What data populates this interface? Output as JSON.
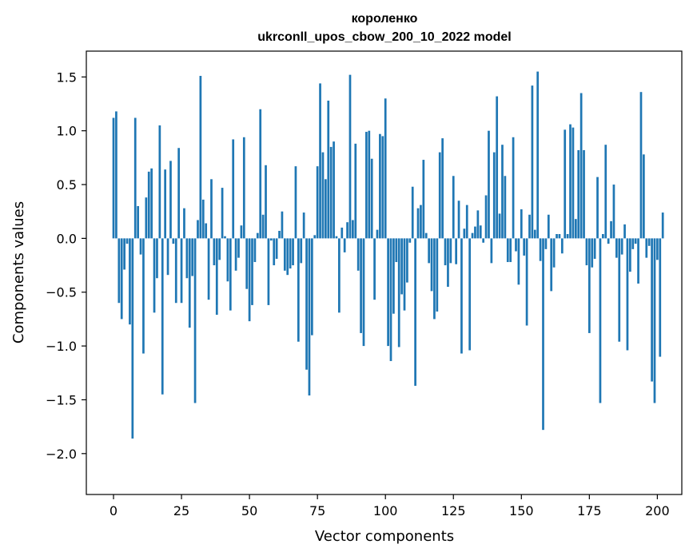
{
  "chart_data": {
    "type": "bar",
    "title": "короленко",
    "subtitle": "ukrconll_upos_cbow_200_10_2022 model",
    "xlabel": "Vector components",
    "ylabel": "Components values",
    "xlim": [
      -10,
      209
    ],
    "ylim": [
      -2.38,
      1.74
    ],
    "xticks": [
      0,
      25,
      50,
      75,
      100,
      125,
      150,
      175,
      200
    ],
    "yticks": [
      -2.0,
      -1.5,
      -1.0,
      -0.5,
      0.0,
      0.5,
      1.0,
      1.5
    ],
    "ytick_labels": [
      "−2.0",
      "−1.5",
      "−1.0",
      "−0.5",
      "0.0",
      "0.5",
      "1.0",
      "1.5"
    ],
    "bar_color": "#1f77b4",
    "grid": false,
    "series": [
      {
        "values": [
          1.12,
          1.18,
          -0.6,
          -0.75,
          -0.29,
          -0.05,
          -0.8,
          -1.86,
          1.12,
          0.3,
          -0.15,
          -1.07,
          0.38,
          0.62,
          0.65,
          -0.69,
          -0.37,
          1.05,
          -1.45,
          0.64,
          -0.34,
          0.72,
          -0.05,
          -0.6,
          0.84,
          -0.6,
          0.28,
          -0.37,
          -0.83,
          -0.35,
          -1.53,
          0.17,
          1.51,
          0.36,
          0.14,
          -0.57,
          0.55,
          -0.25,
          -0.71,
          -0.2,
          0.47,
          0.02,
          -0.4,
          -0.67,
          0.92,
          -0.3,
          -0.18,
          0.12,
          0.94,
          -0.47,
          -0.77,
          -0.62,
          -0.22,
          0.05,
          1.2,
          0.22,
          0.68,
          -0.62,
          -0.02,
          -0.25,
          -0.19,
          0.07,
          0.25,
          -0.3,
          -0.34,
          -0.28,
          -0.25,
          0.67,
          -0.96,
          -0.23,
          0.24,
          -1.22,
          -1.46,
          -0.9,
          0.03,
          0.67,
          1.44,
          0.8,
          0.55,
          1.28,
          0.85,
          0.9,
          0.02,
          -0.69,
          0.1,
          -0.13,
          0.15,
          1.52,
          0.17,
          0.88,
          -0.3,
          -0.88,
          -1.0,
          0.99,
          1.0,
          0.74,
          -0.57,
          0.08,
          0.97,
          0.95,
          1.3,
          -1.0,
          -1.14,
          -0.7,
          -0.22,
          -1.01,
          -0.52,
          -0.67,
          -0.41,
          -0.04,
          0.48,
          -1.37,
          0.28,
          0.31,
          0.73,
          0.05,
          -0.23,
          -0.49,
          -0.75,
          -0.68,
          0.8,
          0.93,
          -0.25,
          -0.45,
          -0.23,
          0.58,
          -0.24,
          0.35,
          -1.07,
          0.09,
          0.31,
          -1.04,
          0.05,
          0.11,
          0.26,
          0.12,
          -0.04,
          0.4,
          1.0,
          -0.23,
          0.8,
          1.32,
          0.23,
          0.87,
          0.58,
          -0.22,
          -0.22,
          0.94,
          -0.12,
          -0.43,
          0.27,
          -0.16,
          -0.81,
          0.22,
          1.42,
          0.08,
          1.55,
          -0.21,
          -1.78,
          -0.1,
          0.22,
          -0.49,
          -0.27,
          0.04,
          0.04,
          -0.14,
          1.01,
          0.04,
          1.06,
          1.03,
          0.18,
          0.82,
          1.35,
          0.82,
          -0.25,
          -0.88,
          -0.27,
          -0.19,
          0.57,
          -1.53,
          0.04,
          0.87,
          -0.05,
          0.16,
          0.5,
          -0.18,
          -0.96,
          -0.15,
          0.13,
          -1.04,
          -0.31,
          -0.1,
          -0.05,
          -0.42,
          1.36,
          0.78,
          -0.18,
          -0.07,
          -1.33,
          -1.53,
          -0.2,
          -1.1,
          0.24
        ]
      }
    ]
  }
}
